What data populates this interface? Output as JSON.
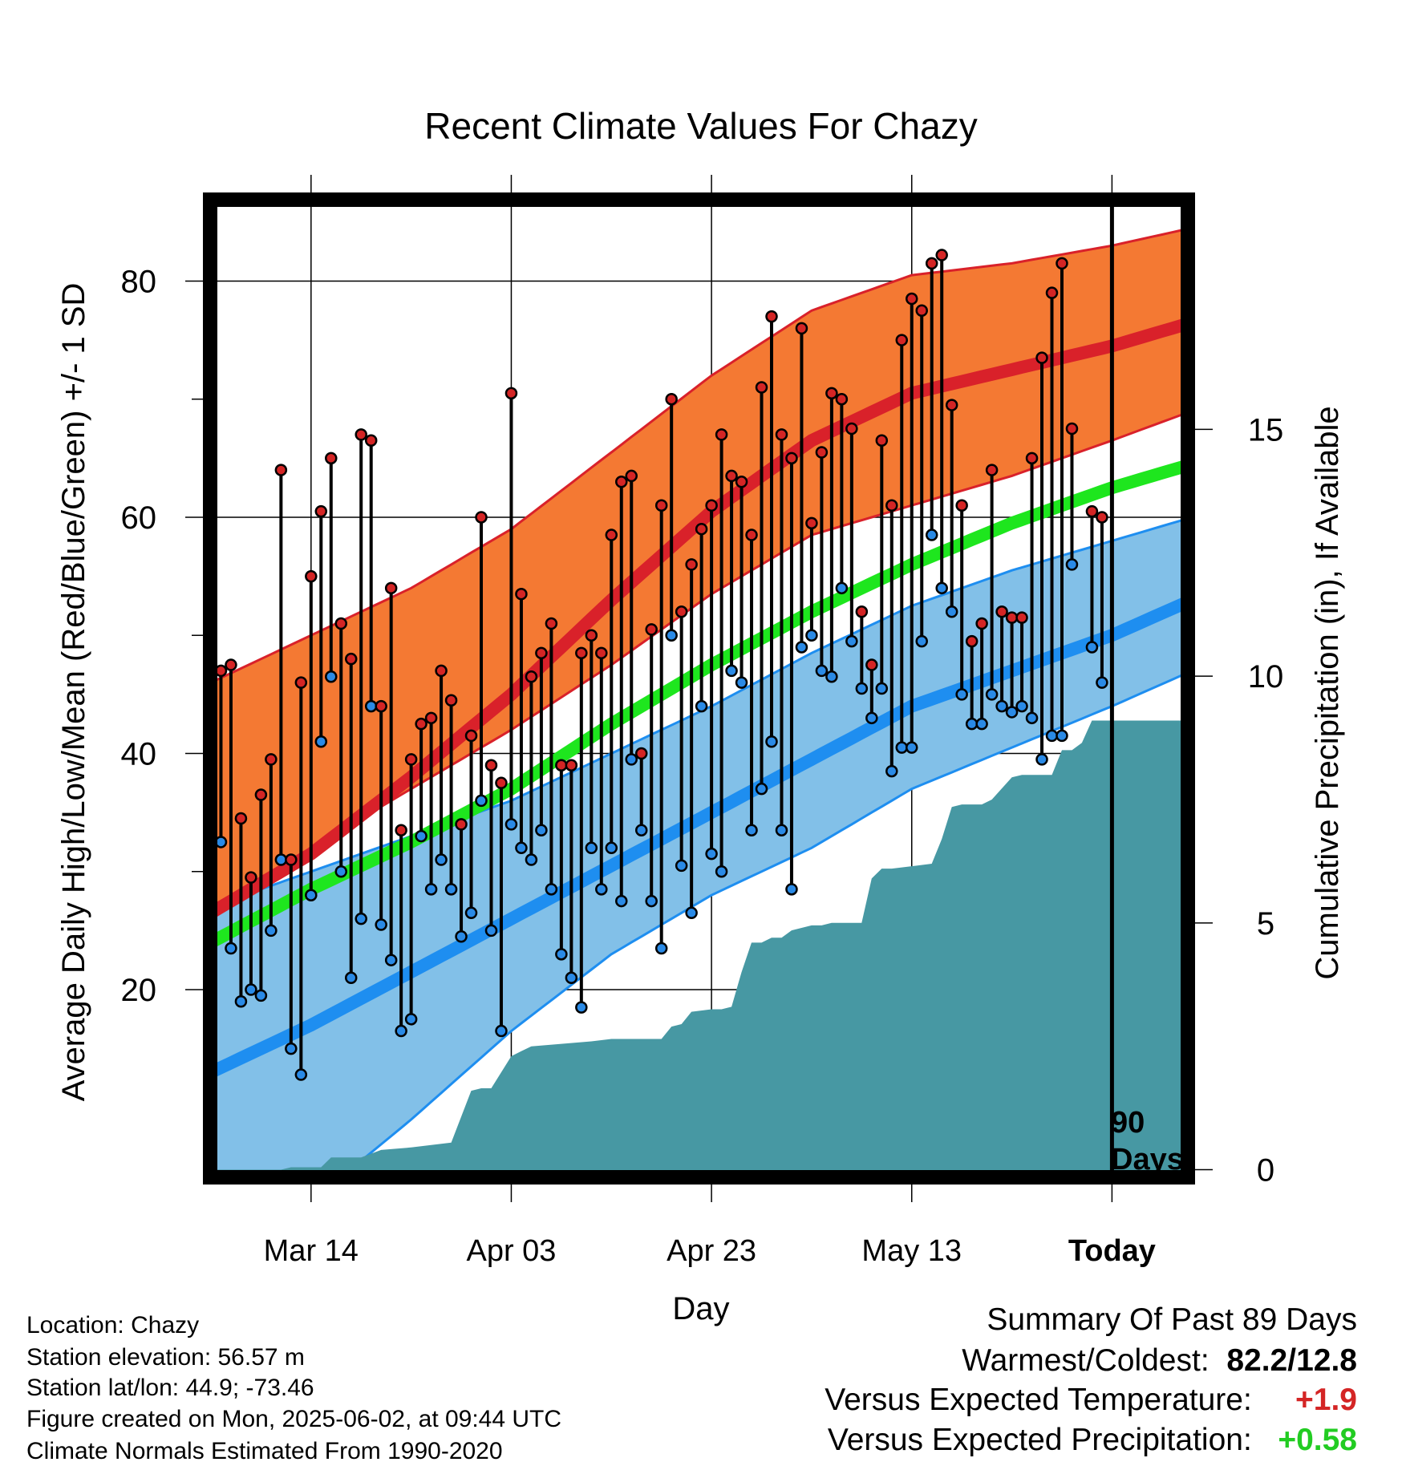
{
  "chart_data": {
    "type": "line",
    "title": "Recent Climate Values For Chazy",
    "xlabel": "Day",
    "ylabel": "Average Daily High/Low/Mean (Red/Blue/Green) +/- 1 SD",
    "y2label": "Cumulative Precipitation (in), If Available",
    "ylim": [
      3.5,
      87.5
    ],
    "y2lim": [
      -0.3,
      19.8
    ],
    "yticks": [
      "20",
      "40",
      "60",
      "80"
    ],
    "y2ticks": [
      "0",
      "5",
      "10",
      "15"
    ],
    "xticks": [
      {
        "day": 10,
        "label": "Mar 14"
      },
      {
        "day": 30,
        "label": "Apr 03"
      },
      {
        "day": 50,
        "label": "Apr 23"
      },
      {
        "day": 70,
        "label": "May 13"
      },
      {
        "day": 90,
        "label": "Today"
      }
    ],
    "xlim": [
      -0.8,
      98.3
    ],
    "today_marker": {
      "day": 90,
      "label_line1": "90",
      "label_line2": "Days"
    },
    "grid": true,
    "normal_high": {
      "day": [
        0,
        10,
        20,
        30,
        40,
        50,
        60,
        70,
        80,
        90,
        98
      ],
      "mean": [
        26.5,
        31.5,
        38.0,
        45.0,
        53.0,
        60.5,
        66.5,
        70.5,
        72.5,
        74.5,
        76.5
      ],
      "plus_sd": [
        46.0,
        50.0,
        54.0,
        59.0,
        65.5,
        72.0,
        77.5,
        80.5,
        81.5,
        83.0,
        84.5
      ],
      "minus_sd": [
        27.0,
        32.0,
        37.0,
        42.0,
        47.5,
        53.5,
        58.5,
        61.0,
        63.5,
        66.5,
        69.0
      ]
    },
    "normal_mean": {
      "day": [
        0,
        10,
        20,
        30,
        40,
        50,
        60,
        70,
        80,
        90,
        98
      ],
      "values": [
        24.0,
        28.5,
        32.5,
        37.0,
        42.5,
        47.5,
        52.0,
        56.0,
        59.5,
        62.5,
        64.5
      ]
    },
    "normal_low": {
      "day": [
        0,
        10,
        20,
        30,
        40,
        50,
        60,
        70,
        80,
        90,
        98
      ],
      "mean": [
        13.0,
        17.0,
        21.5,
        26.0,
        30.5,
        35.0,
        39.5,
        44.0,
        47.0,
        50.0,
        53.0
      ],
      "plus_sd": [
        27.0,
        30.0,
        33.0,
        36.0,
        40.0,
        44.0,
        48.5,
        52.5,
        55.5,
        58.0,
        60.0
      ],
      "minus_sd": [
        -3.0,
        2.0,
        9.0,
        16.5,
        23.0,
        28.0,
        32.0,
        37.0,
        40.5,
        44.0,
        47.0
      ]
    },
    "daily_highs": [
      35.5,
      47.0,
      47.5,
      34.5,
      29.5,
      36.5,
      39.5,
      64.0,
      31.0,
      46.0,
      55.0,
      60.5,
      65.0,
      51.0,
      48.0,
      67.0,
      66.5,
      44.0,
      54.0,
      33.5,
      39.5,
      42.5,
      43.0,
      47.0,
      44.5,
      34.0,
      41.5,
      60.0,
      39.0,
      37.5,
      70.5,
      53.5,
      46.5,
      48.5,
      51.0,
      39.0,
      39.0,
      48.5,
      50.0,
      48.5,
      58.5,
      63.0,
      63.5,
      40.0,
      50.5,
      61.0,
      70.0,
      52.0,
      56.0,
      59.0,
      61.0,
      67.0,
      63.5,
      63.0,
      58.5,
      71.0,
      77.0,
      67.0,
      65.0,
      76.0,
      59.5,
      65.5,
      70.5,
      70.0,
      67.5,
      52.0,
      47.5,
      66.5,
      61.0,
      75.0,
      78.5,
      77.5,
      81.5,
      82.2,
      69.5,
      61.0,
      49.5,
      51.0,
      64.0,
      52.0,
      51.5,
      51.5,
      65.0,
      73.5,
      79.0,
      81.5,
      67.5,
      60.5,
      60.0
    ],
    "daily_lows": [
      22.0,
      32.5,
      23.5,
      19.0,
      20.0,
      19.5,
      25.0,
      31.0,
      15.0,
      12.8,
      28.0,
      41.0,
      46.5,
      30.0,
      21.0,
      26.0,
      44.0,
      25.5,
      22.5,
      16.5,
      17.5,
      33.0,
      28.5,
      31.0,
      28.5,
      24.5,
      26.5,
      36.0,
      25.0,
      16.5,
      34.0,
      32.0,
      31.0,
      33.5,
      28.5,
      23.0,
      21.0,
      18.5,
      32.0,
      28.5,
      32.0,
      27.5,
      39.5,
      33.5,
      27.5,
      23.5,
      50.0,
      30.5,
      26.5,
      44.0,
      31.5,
      30.0,
      47.0,
      46.0,
      33.5,
      37.0,
      41.0,
      33.5,
      28.5,
      49.0,
      50.0,
      47.0,
      46.5,
      54.0,
      49.5,
      45.5,
      43.0,
      45.5,
      38.5,
      40.5,
      40.5,
      49.5,
      58.5,
      54.0,
      52.0,
      45.0,
      42.5,
      42.5,
      45.0,
      44.0,
      43.5,
      44.0,
      43.0,
      39.5,
      41.5,
      41.5,
      56.0,
      49.0,
      46.0
    ],
    "missing_days": [
      87
    ],
    "cumulative_precipitation": {
      "day": [
        0,
        7,
        8,
        11,
        12,
        15,
        17,
        20,
        22,
        24,
        26,
        27,
        28,
        30,
        31,
        32,
        35,
        38,
        40,
        45,
        46,
        47,
        48,
        50,
        51,
        52,
        53,
        54,
        55,
        56,
        57,
        58,
        59,
        60,
        61,
        62,
        63,
        65,
        66,
        67,
        68,
        70,
        72,
        73,
        74,
        75,
        76,
        77,
        78,
        80,
        81,
        82,
        84,
        85,
        86,
        87,
        88,
        89,
        90,
        91,
        98
      ],
      "values": [
        0,
        0,
        0.05,
        0.05,
        0.25,
        0.25,
        0.4,
        0.45,
        0.5,
        0.55,
        1.6,
        1.65,
        1.65,
        2.3,
        2.4,
        2.5,
        2.55,
        2.6,
        2.65,
        2.65,
        2.9,
        2.95,
        3.2,
        3.25,
        3.25,
        3.3,
        4.0,
        4.6,
        4.6,
        4.7,
        4.7,
        4.85,
        4.9,
        4.95,
        4.95,
        5.0,
        5.0,
        5.0,
        5.9,
        6.1,
        6.1,
        6.15,
        6.2,
        6.7,
        7.35,
        7.4,
        7.4,
        7.4,
        7.5,
        7.95,
        8.0,
        8.0,
        8.0,
        8.5,
        8.5,
        8.65,
        9.1,
        9.1,
        9.1,
        9.1,
        9.1
      ]
    },
    "colors": {
      "high_band": "#f47933",
      "high_mean": "#d9212a",
      "high_edge": "#d9212a",
      "low_band": "#82c0e8",
      "low_mean": "#1e8ef0",
      "low_edge": "#1e8ef0",
      "mean_line": "#1ee61e",
      "precip": "#4798a3",
      "high_dot": "#d42525",
      "low_dot": "#2a8ae6"
    }
  },
  "info": {
    "location": "Location: Chazy",
    "elevation": "Station elevation: 56.57 m",
    "latlon": "Station lat/lon: 44.9; -73.46",
    "created": "Figure created on Mon, 2025-06-02, at 09:44 UTC",
    "normals": "Climate Normals Estimated From 1990-2020"
  },
  "summary": {
    "title": "Summary Of Past 89 Days",
    "warm_cold_label": "Warmest/Coldest:",
    "warm_cold_value": "82.2/12.8",
    "temp_label": "Versus Expected Temperature:",
    "temp_value": "+1.9",
    "temp_color": "#d42525",
    "precip_label": "Versus Expected Precipitation:",
    "precip_value": "+0.58",
    "precip_color": "#22cc22"
  }
}
